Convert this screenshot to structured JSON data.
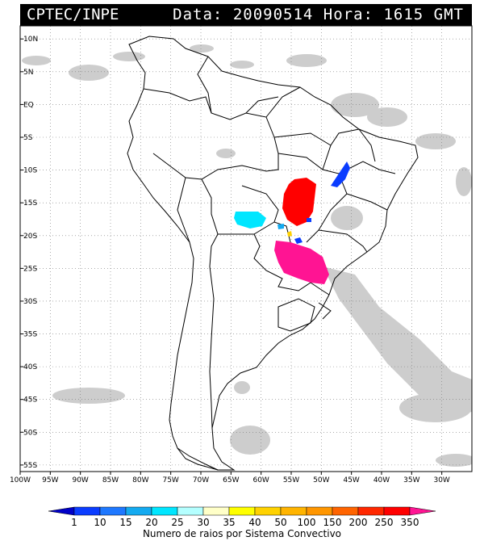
{
  "header": {
    "source": "CPTEC/INPE",
    "date_label": "Data:",
    "date_value": "20090514",
    "time_label": "Hora:",
    "time_value": "1615",
    "time_unit": "GMT"
  },
  "map": {
    "lon_range": [
      -100,
      -25
    ],
    "lat_range": [
      -56,
      12
    ],
    "lon_ticks": [
      "100W",
      "95W",
      "90W",
      "85W",
      "80W",
      "75W",
      "70W",
      "65W",
      "60W",
      "55W",
      "50W",
      "45W",
      "40W",
      "35W",
      "30W"
    ],
    "lat_ticks": [
      "10N",
      "5N",
      "EQ",
      "5S",
      "10S",
      "15S",
      "20S",
      "25S",
      "30S",
      "35S",
      "40S",
      "45S",
      "50S",
      "55S"
    ],
    "colors": {
      "land_border": "#000000",
      "cloud": "#c8c8c8",
      "gridline": "#777777"
    }
  },
  "legend": {
    "title": "Numero de raios por Sistema Convectivo",
    "values": [
      "1",
      "10",
      "15",
      "20",
      "25",
      "30",
      "35",
      "40",
      "50",
      "100",
      "150",
      "200",
      "250",
      "350"
    ],
    "colors": [
      "#0000c8",
      "#0a3cff",
      "#1e78ff",
      "#14aaf0",
      "#00e6ff",
      "#b4ffff",
      "#ffffc8",
      "#ffff00",
      "#ffd200",
      "#ffb400",
      "#ff9600",
      "#ff6400",
      "#ff2800",
      "#ff0000",
      "#ff1493"
    ]
  },
  "systems": [
    {
      "name": "central-brazil",
      "value_class": "350",
      "color": "#ff0000"
    },
    {
      "name": "paraguay-southern-brazil",
      "value_class": ">350",
      "color": "#ff1493"
    },
    {
      "name": "bolivia",
      "value_class": "25",
      "color": "#00e6ff"
    },
    {
      "name": "northeast-brazil",
      "value_class": "10",
      "color": "#0a3cff"
    }
  ]
}
